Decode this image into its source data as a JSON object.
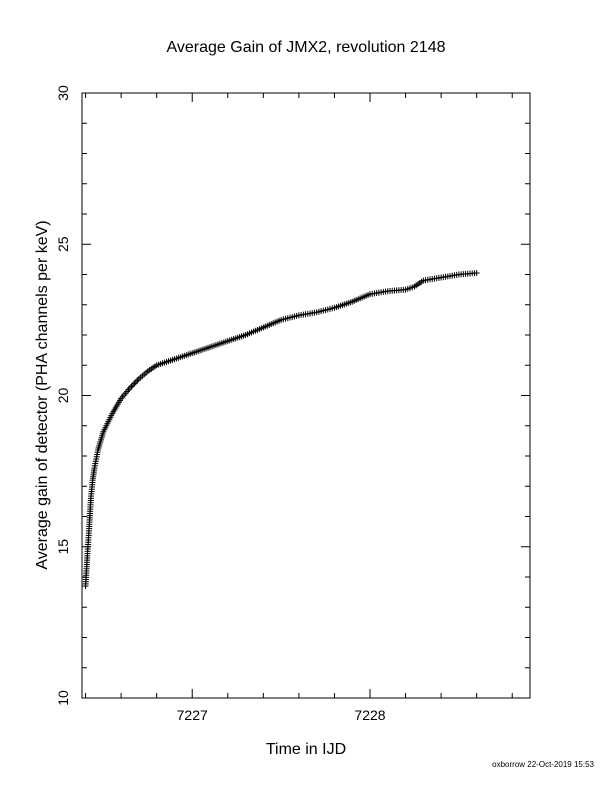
{
  "chart_data": {
    "type": "scatter",
    "title": "Average Gain of JMX2, revolution 2148",
    "xlabel": "Time in IJD",
    "ylabel": "Average gain of detector (PHA channels per keV)",
    "xlim": [
      7226.38,
      7228.9
    ],
    "ylim": [
      10,
      30
    ],
    "x_ticks": [
      "7227",
      "7228"
    ],
    "y_ticks": [
      "10",
      "15",
      "20",
      "25",
      "30"
    ],
    "marker": "plus",
    "grid": false,
    "legend": "none",
    "series": [
      {
        "x": [
          7226.4,
          7226.41,
          7226.42,
          7226.43,
          7226.44,
          7226.45,
          7226.47,
          7226.5,
          7226.55,
          7226.6,
          7226.65,
          7226.7,
          7226.75,
          7226.8,
          7226.9,
          7227.0,
          7227.1,
          7227.2,
          7227.3,
          7227.4,
          7227.5,
          7227.6,
          7227.7,
          7227.8,
          7227.9,
          7228.0,
          7228.1,
          7228.2,
          7228.25,
          7228.3,
          7228.4,
          7228.5,
          7228.6
        ],
        "y": [
          13.7,
          14.7,
          15.6,
          16.6,
          17.2,
          17.6,
          18.2,
          18.8,
          19.4,
          19.9,
          20.25,
          20.55,
          20.8,
          21.0,
          21.2,
          21.4,
          21.6,
          21.8,
          22.0,
          22.25,
          22.5,
          22.65,
          22.75,
          22.9,
          23.1,
          23.35,
          23.45,
          23.5,
          23.6,
          23.8,
          23.9,
          24.0,
          24.05
        ]
      }
    ]
  },
  "footer": "oxborrow 22-Oct-2019 15:53"
}
